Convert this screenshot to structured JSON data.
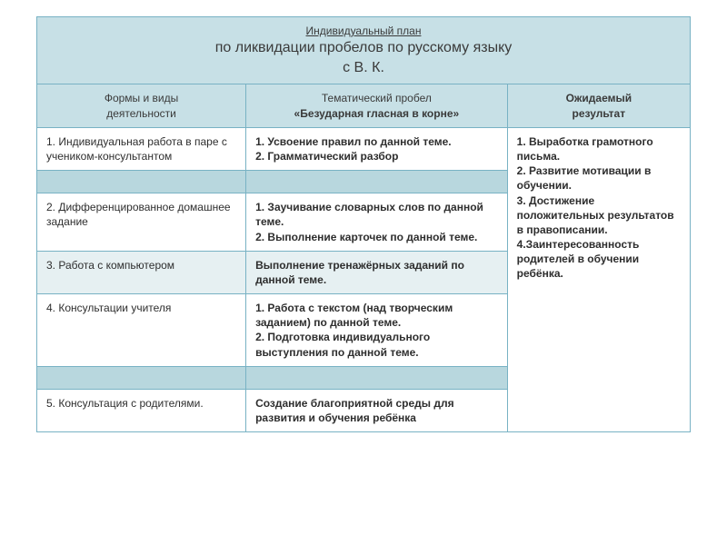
{
  "title": {
    "line1": "Индивидуальный план",
    "line2": "по ликвидации пробелов по русскому языку",
    "line3": "с В. К."
  },
  "headers": {
    "col1_l1": "Формы и виды",
    "col1_l2": "деятельности",
    "col2_l1": "Тематический пробел",
    "col2_l2": "«Безударная гласная в корне»",
    "col3_l1": "Ожидаемый",
    "col3_l2": "результат"
  },
  "rows": {
    "r1_activity": "1. Индивидуальная работа в паре с учеником-консультантом",
    "r1_topic": "1. Усвоение правил по данной теме.\n2. Грамматический разбор",
    "r2_activity": "2. Дифференцированное домашнее задание",
    "r2_topic": "1. Заучивание словарных слов по данной теме.\n2. Выполнение карточек по данной теме.",
    "r3_activity": "3. Работа с компьютером",
    "r3_topic": "Выполнение тренажёрных заданий по данной теме.",
    "r4_activity": "4. Консультации учителя",
    "r4_topic": "1. Работа с текстом (над творческим заданием) по данной теме.\n2. Подготовка индивидуального выступления по данной теме.",
    "r5_activity": "5. Консультация с родителями.",
    "r5_topic": "Создание благоприятной среды для развития  и обучения ребёнка"
  },
  "result": "1. Выработка грамотного письма.\n2. Развитие мотивации в обучении.\n3. Достижение положительных результатов в правописании.\n4.Заинтересованность родителей в обучении ребёнка.",
  "colors": {
    "header_bg": "#c7e0e6",
    "band_bg": "#e6f0f2",
    "sep_bg": "#b8d7de",
    "border": "#78b2c4",
    "page_bg": "#ffffff",
    "text": "#2e2e2e"
  },
  "layout": {
    "col_widths_pct": [
      32,
      40,
      28
    ],
    "font_family": "Arial",
    "base_fontsize_pt": 9,
    "title_fontsize_pt": 12
  }
}
